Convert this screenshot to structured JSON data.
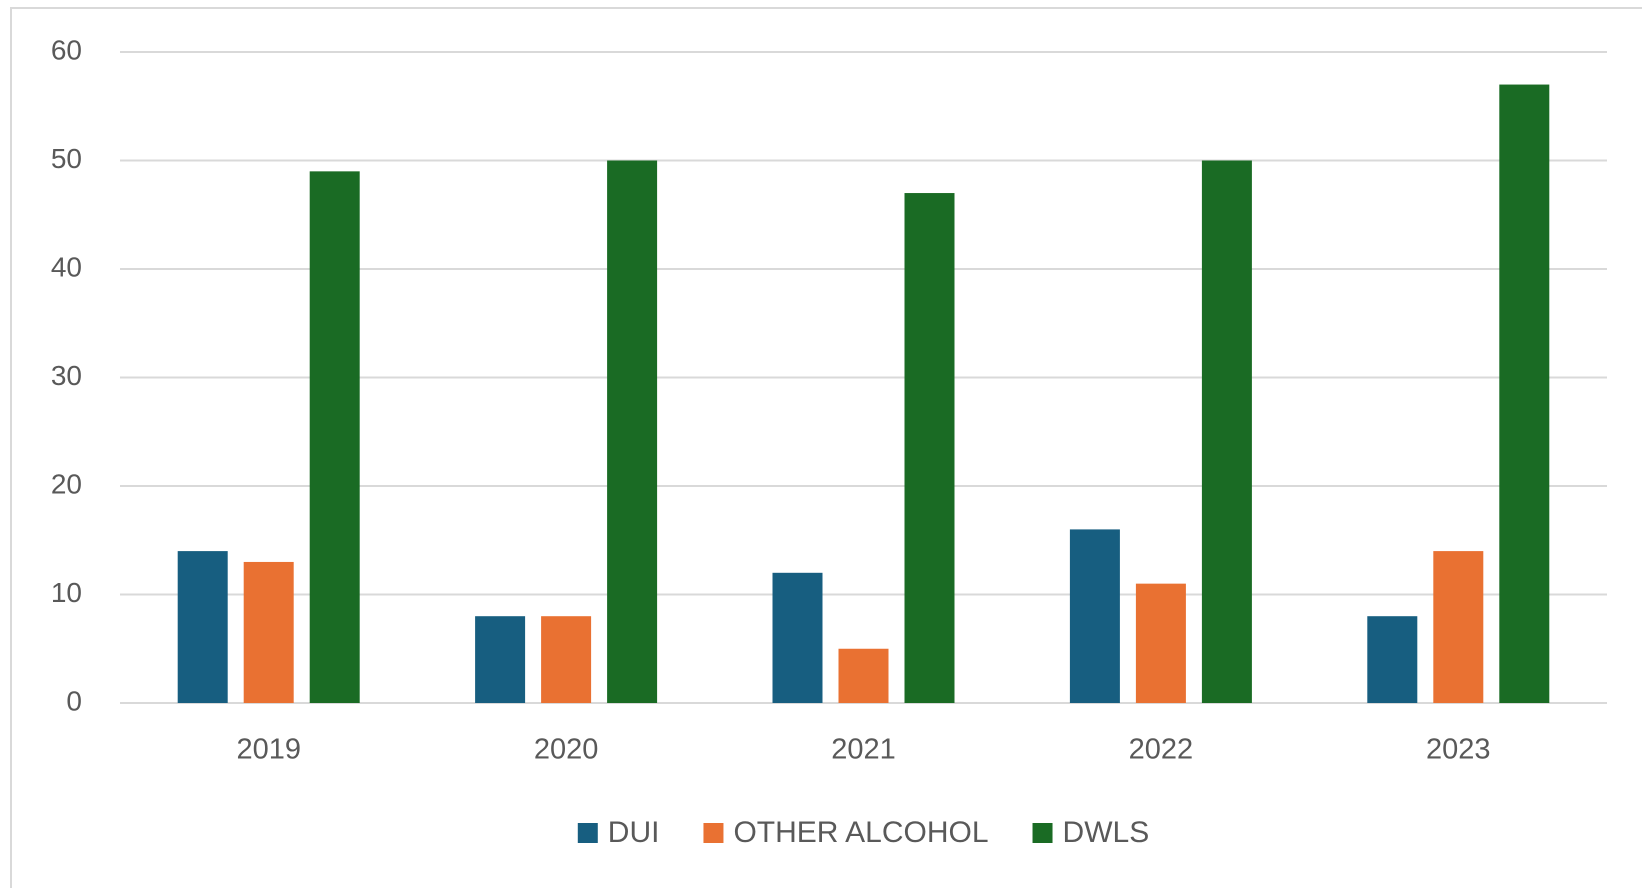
{
  "chart_data": {
    "type": "bar",
    "categories": [
      "2019",
      "2020",
      "2021",
      "2022",
      "2023"
    ],
    "series": [
      {
        "name": "DUI",
        "color": "#175e80",
        "values": [
          14,
          8,
          12,
          16,
          8
        ]
      },
      {
        "name": "OTHER ALCOHOL",
        "color": "#e97132",
        "values": [
          13,
          8,
          5,
          11,
          14
        ]
      },
      {
        "name": "DWLS",
        "color": "#1a6b24",
        "values": [
          49,
          50,
          47,
          50,
          57
        ]
      }
    ],
    "ylim": [
      0,
      60
    ],
    "yticks": [
      0,
      10,
      20,
      30,
      40,
      50,
      60
    ],
    "grid": true,
    "legend": "bottom"
  }
}
